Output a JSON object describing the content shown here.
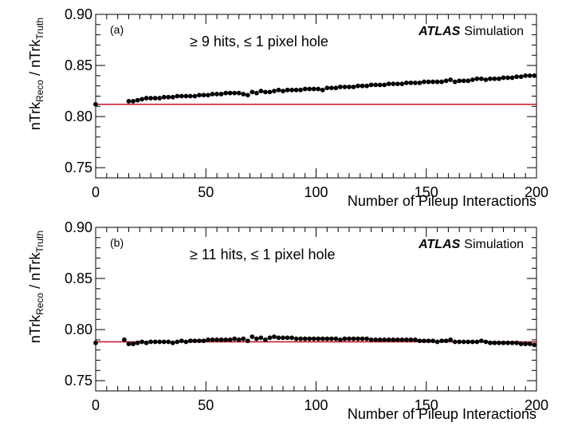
{
  "chart_data": [
    {
      "type": "scatter",
      "panel_label": "(a)",
      "cut_text": "≥  9 hits,  ≤ 1 pixel hole",
      "atlas_label": "ATLAS",
      "sim_label": "Simulation",
      "xlabel": "Number of Pileup Interactions",
      "ylabel_main": "nTrk",
      "ylabel_sub1": "Reco",
      "ylabel_mid": " / nTrk",
      "ylabel_sub2": "Truth",
      "xlim": [
        0,
        200
      ],
      "ylim": [
        0.74,
        0.9
      ],
      "xticks": [
        "0",
        "50",
        "100",
        "150",
        "200"
      ],
      "yticks": [
        "0.75",
        "0.80",
        "0.85",
        "0.90"
      ],
      "reference_line": 0.812,
      "line_color": "#cc1020",
      "marker_color": "#000000",
      "series": [
        {
          "name": "ratio",
          "x": [
            0,
            15,
            17,
            19,
            21,
            23,
            25,
            27,
            29,
            31,
            33,
            35,
            37,
            39,
            41,
            43,
            45,
            47,
            49,
            51,
            53,
            55,
            57,
            59,
            61,
            63,
            65,
            67,
            69,
            71,
            73,
            75,
            77,
            79,
            81,
            83,
            85,
            87,
            89,
            91,
            93,
            95,
            97,
            99,
            101,
            103,
            105,
            107,
            109,
            111,
            113,
            115,
            117,
            119,
            121,
            123,
            125,
            127,
            129,
            131,
            133,
            135,
            137,
            139,
            141,
            143,
            145,
            147,
            149,
            151,
            153,
            155,
            157,
            159,
            161,
            163,
            165,
            167,
            169,
            171,
            173,
            175,
            177,
            179,
            181,
            183,
            185,
            187,
            189,
            191,
            193,
            195,
            197,
            199
          ],
          "y": [
            0.812,
            0.815,
            0.815,
            0.816,
            0.817,
            0.818,
            0.818,
            0.818,
            0.818,
            0.819,
            0.819,
            0.819,
            0.82,
            0.82,
            0.82,
            0.82,
            0.82,
            0.821,
            0.821,
            0.821,
            0.822,
            0.822,
            0.822,
            0.823,
            0.823,
            0.823,
            0.823,
            0.822,
            0.821,
            0.824,
            0.823,
            0.825,
            0.824,
            0.824,
            0.825,
            0.826,
            0.825,
            0.826,
            0.826,
            0.826,
            0.826,
            0.827,
            0.827,
            0.827,
            0.827,
            0.826,
            0.828,
            0.828,
            0.828,
            0.829,
            0.829,
            0.829,
            0.829,
            0.83,
            0.83,
            0.83,
            0.831,
            0.831,
            0.831,
            0.831,
            0.832,
            0.832,
            0.832,
            0.832,
            0.833,
            0.833,
            0.833,
            0.833,
            0.834,
            0.834,
            0.834,
            0.834,
            0.834,
            0.835,
            0.836,
            0.834,
            0.835,
            0.835,
            0.835,
            0.836,
            0.837,
            0.837,
            0.836,
            0.837,
            0.837,
            0.837,
            0.838,
            0.838,
            0.838,
            0.839,
            0.839,
            0.84,
            0.84,
            0.84
          ]
        }
      ]
    },
    {
      "type": "scatter",
      "panel_label": "(b)",
      "cut_text": "≥  11 hits,  ≤  1 pixel hole",
      "atlas_label": "ATLAS",
      "sim_label": "Simulation",
      "xlabel": "Number of Pileup Interactions",
      "ylabel_main": "nTrk",
      "ylabel_sub1": "Reco",
      "ylabel_mid": " / nTrk",
      "ylabel_sub2": "Truth",
      "xlim": [
        0,
        200
      ],
      "ylim": [
        0.74,
        0.9
      ],
      "xticks": [
        "0",
        "50",
        "100",
        "150",
        "200"
      ],
      "yticks": [
        "0.75",
        "0.80",
        "0.85",
        "0.90"
      ],
      "reference_line": 0.788,
      "line_color": "#cc1020",
      "marker_color": "#000000",
      "series": [
        {
          "name": "ratio",
          "x": [
            0,
            13,
            15,
            17,
            19,
            21,
            23,
            25,
            27,
            29,
            31,
            33,
            35,
            37,
            39,
            41,
            43,
            45,
            47,
            49,
            51,
            53,
            55,
            57,
            59,
            61,
            63,
            65,
            67,
            69,
            71,
            73,
            75,
            77,
            79,
            81,
            83,
            85,
            87,
            89,
            91,
            93,
            95,
            97,
            99,
            101,
            103,
            105,
            107,
            109,
            111,
            113,
            115,
            117,
            119,
            121,
            123,
            125,
            127,
            129,
            131,
            133,
            135,
            137,
            139,
            141,
            143,
            145,
            147,
            149,
            151,
            153,
            155,
            157,
            159,
            161,
            163,
            165,
            167,
            169,
            171,
            173,
            175,
            177,
            179,
            181,
            183,
            185,
            187,
            189,
            191,
            193,
            195,
            197,
            199
          ],
          "y": [
            0.787,
            0.79,
            0.786,
            0.786,
            0.787,
            0.788,
            0.787,
            0.788,
            0.788,
            0.788,
            0.788,
            0.788,
            0.787,
            0.788,
            0.789,
            0.788,
            0.789,
            0.789,
            0.789,
            0.789,
            0.79,
            0.79,
            0.79,
            0.79,
            0.79,
            0.79,
            0.791,
            0.79,
            0.791,
            0.789,
            0.793,
            0.791,
            0.792,
            0.79,
            0.792,
            0.793,
            0.792,
            0.792,
            0.792,
            0.792,
            0.791,
            0.791,
            0.791,
            0.791,
            0.791,
            0.791,
            0.791,
            0.791,
            0.791,
            0.791,
            0.79,
            0.791,
            0.791,
            0.791,
            0.791,
            0.791,
            0.791,
            0.79,
            0.79,
            0.79,
            0.79,
            0.79,
            0.79,
            0.79,
            0.79,
            0.79,
            0.79,
            0.79,
            0.789,
            0.789,
            0.789,
            0.789,
            0.788,
            0.789,
            0.789,
            0.79,
            0.788,
            0.788,
            0.788,
            0.788,
            0.788,
            0.788,
            0.789,
            0.788,
            0.787,
            0.787,
            0.787,
            0.787,
            0.787,
            0.787,
            0.787,
            0.786,
            0.786,
            0.786,
            0.785
          ]
        }
      ]
    }
  ]
}
